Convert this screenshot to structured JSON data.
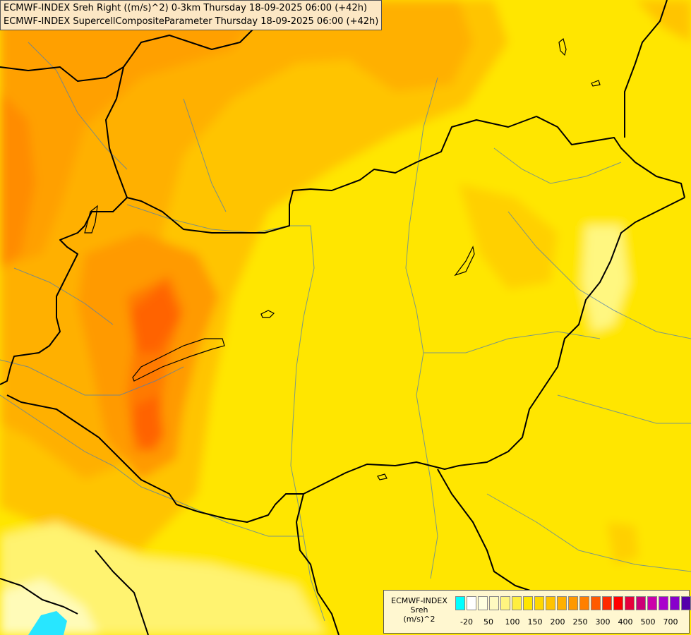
{
  "header": {
    "line1": "ECMWF-INDEX Sreh Right ((m/s)^2) 0-3km Thursday 18-09-2025 06:00 (+42h)",
    "line2": "ECMWF-INDEX SupercellCompositeParameter Thursday 18-09-2025 06:00 (+42h)"
  },
  "legend": {
    "title_line1": "ECMWF-INDEX",
    "title_line2": "Sreh",
    "title_line3": "(m/s)^2",
    "colors": [
      "#00ffff",
      "#ffffff",
      "#ffffe0",
      "#fffac0",
      "#fff580",
      "#ffee40",
      "#ffe600",
      "#ffd700",
      "#ffc300",
      "#ffb000",
      "#ff9900",
      "#ff7f00",
      "#ff5a00",
      "#ff2a00",
      "#ff0000",
      "#e6003c",
      "#cc0077",
      "#cc00aa",
      "#aa00cc",
      "#8800cc",
      "#5500aa",
      "#000080"
    ],
    "ticks": [
      "-20",
      "50",
      "100",
      "150",
      "200",
      "250",
      "300",
      "400",
      "500",
      "700"
    ]
  }
}
